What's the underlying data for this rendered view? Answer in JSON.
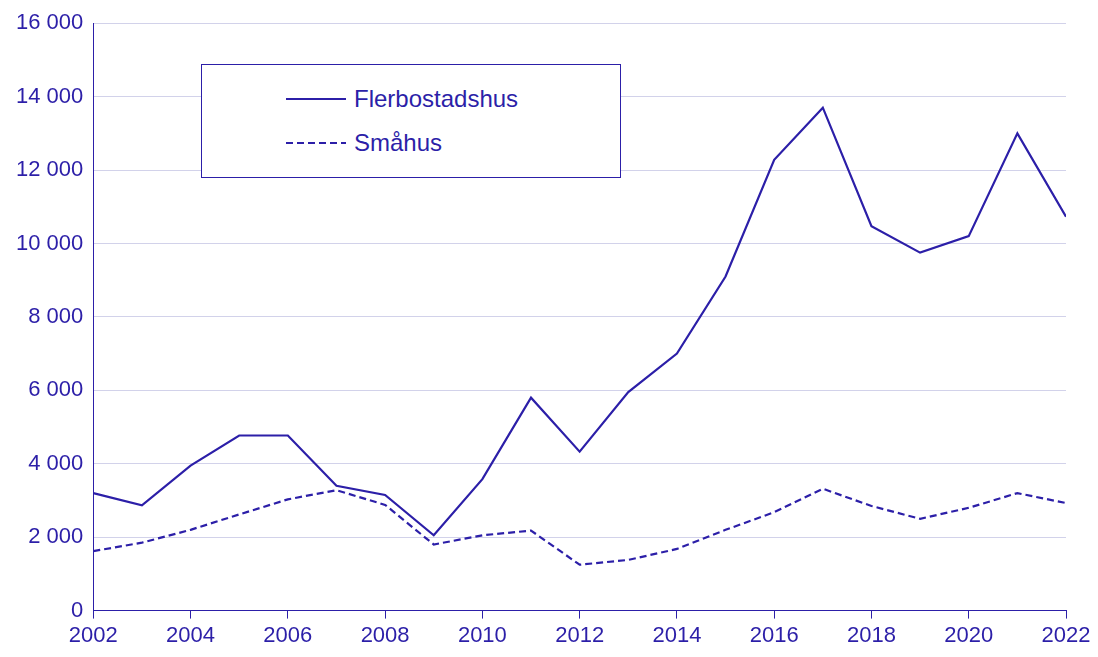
{
  "chart_data": {
    "type": "line",
    "x": [
      2002,
      2003,
      2004,
      2005,
      2006,
      2007,
      2008,
      2009,
      2010,
      2011,
      2012,
      2013,
      2014,
      2015,
      2016,
      2017,
      2018,
      2019,
      2020,
      2021,
      2022
    ],
    "series": [
      {
        "name": "Flerbostadshus",
        "color": "#2c1fa8",
        "line_style": "solid",
        "values": [
          3200,
          2870,
          3950,
          4770,
          4770,
          3400,
          3150,
          2050,
          3580,
          5800,
          4330,
          5950,
          7000,
          9100,
          12280,
          13700,
          10470,
          9750,
          10200,
          13000,
          10730
        ]
      },
      {
        "name": "Småhus",
        "color": "#2c1fa8",
        "line_style": "dashed",
        "values": [
          1620,
          1850,
          2200,
          2620,
          3030,
          3280,
          2880,
          1800,
          2050,
          2180,
          1250,
          1380,
          1680,
          2200,
          2680,
          3320,
          2850,
          2500,
          2800,
          3200,
          2930
        ]
      }
    ],
    "xlim": [
      2002,
      2022
    ],
    "xticks": [
      2002,
      2004,
      2006,
      2008,
      2010,
      2012,
      2014,
      2016,
      2018,
      2020,
      2022
    ],
    "ylim": [
      0,
      16000
    ],
    "yticks": [
      0,
      {
        "value": 2000,
        "label": "2 000"
      },
      {
        "value": 4000,
        "label": "4 000"
      },
      {
        "value": 6000,
        "label": "6 000"
      },
      {
        "value": 8000,
        "label": "8 000"
      },
      {
        "value": 10000,
        "label": "10 000"
      },
      {
        "value": 12000,
        "label": "12 000"
      },
      {
        "value": 14000,
        "label": "14 000"
      },
      {
        "value": 16000,
        "label": "16 000"
      }
    ],
    "grid": true,
    "legend": "upper left"
  }
}
